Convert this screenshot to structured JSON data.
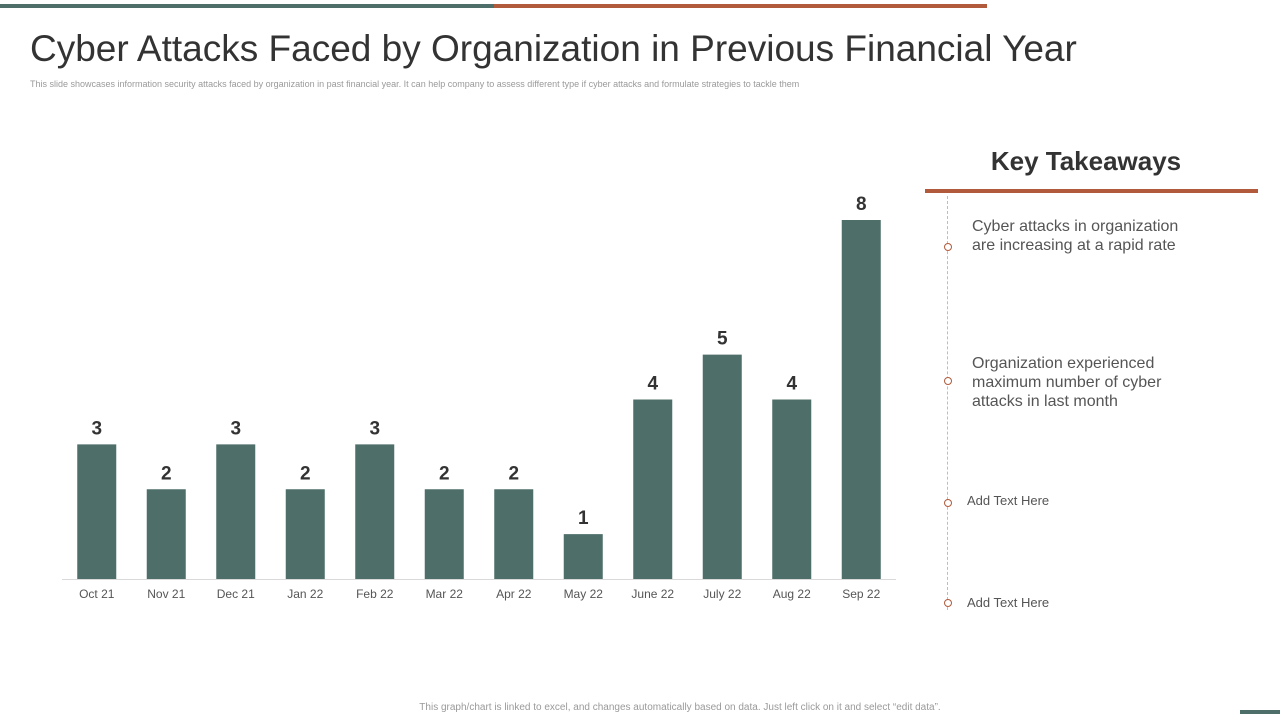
{
  "title": "Cyber Attacks Faced by Organization in Previous Financial Year",
  "subtitle": "This slide showcases information security attacks faced by organization in past financial year. It can help company to assess different type if cyber attacks and formulate strategies to tackle them",
  "colors": {
    "bar": "#4e6f69",
    "accent_teal": "#4e6f69",
    "accent_rust": "#b25b3c"
  },
  "chart_data": {
    "type": "bar",
    "title": "",
    "xlabel": "",
    "ylabel": "",
    "categories": [
      "Oct 21",
      "Nov 21",
      "Dec 21",
      "Jan 22",
      "Feb 22",
      "Mar 22",
      "Apr 22",
      "May 22",
      "June 22",
      "July 22",
      "Aug 22",
      "Sep 22"
    ],
    "values": [
      3,
      2,
      3,
      2,
      3,
      2,
      2,
      1,
      4,
      5,
      4,
      8
    ],
    "ylim": [
      0,
      8
    ],
    "grid": false,
    "data_labels": true
  },
  "key_takeaways": {
    "heading": "Key Takeaways",
    "items": [
      "Cyber attacks in organization are increasing at a rapid rate",
      "Organization experienced maximum number of cyber attacks in last month",
      "Add Text Here",
      "Add Text Here"
    ]
  },
  "footer": "This graph/chart is linked to excel, and changes automatically based on data. Just left click on it and select “edit data”."
}
